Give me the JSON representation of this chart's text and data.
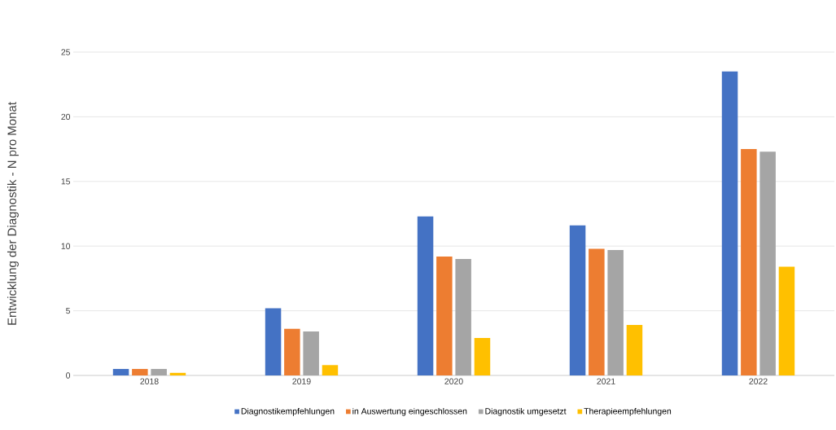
{
  "chart_data": {
    "type": "bar",
    "ylabel": "Entwicklung der Diagnostik - N pro Monat",
    "categories": [
      "2018",
      "2019",
      "2020",
      "2021",
      "2022"
    ],
    "series": [
      {
        "name": "Diagnostikempfehlungen",
        "color": "#4472c4",
        "values": [
          0.5,
          5.2,
          12.3,
          11.6,
          23.5
        ]
      },
      {
        "name": "in Auswertung eingeschlossen",
        "color": "#ed7d31",
        "values": [
          0.5,
          3.6,
          9.2,
          9.8,
          17.5
        ]
      },
      {
        "name": "Diagnostik umgesetzt",
        "color": "#a5a5a5",
        "values": [
          0.5,
          3.4,
          9.0,
          9.7,
          17.3
        ]
      },
      {
        "name": "Therapieempfehlungen",
        "color": "#ffc000",
        "values": [
          0.2,
          0.8,
          2.9,
          3.9,
          8.4
        ]
      }
    ],
    "ylim": [
      0,
      25
    ],
    "yticks": [
      0,
      5,
      10,
      15,
      20,
      25
    ],
    "grid": "y",
    "legend": "bottom"
  }
}
